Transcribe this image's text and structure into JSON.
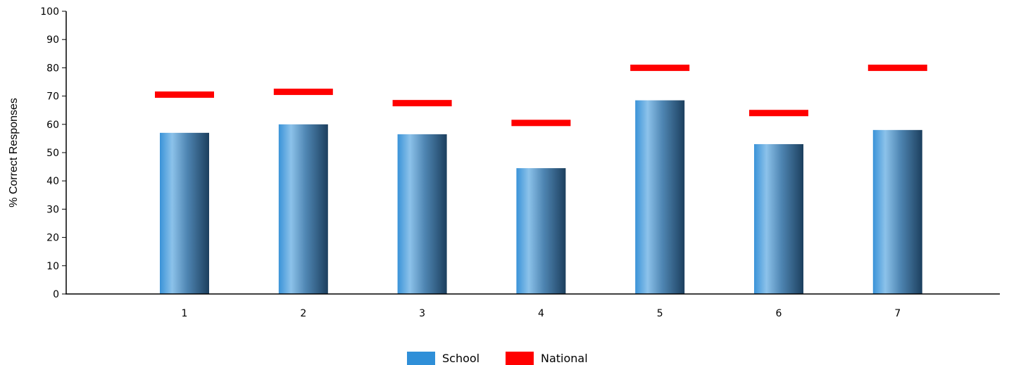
{
  "chart_data": {
    "type": "bar",
    "title": "",
    "xlabel": "",
    "ylabel": "% Correct Responses",
    "ylim": [
      0,
      100
    ],
    "yticks": [
      0,
      10,
      20,
      30,
      40,
      50,
      60,
      70,
      80,
      90,
      100
    ],
    "categories": [
      "1",
      "2",
      "3",
      "4",
      "5",
      "6",
      "7"
    ],
    "series": [
      {
        "name": "School",
        "kind": "bar",
        "color": "#2f8fd8",
        "values": [
          57,
          60,
          56.5,
          44.5,
          68.5,
          53,
          58
        ]
      },
      {
        "name": "National",
        "kind": "marker",
        "color": "#ff0000",
        "values": [
          70.5,
          71.5,
          67.5,
          60.5,
          80,
          64,
          80
        ]
      }
    ],
    "grid": false,
    "legend_position": "bottom-center"
  }
}
